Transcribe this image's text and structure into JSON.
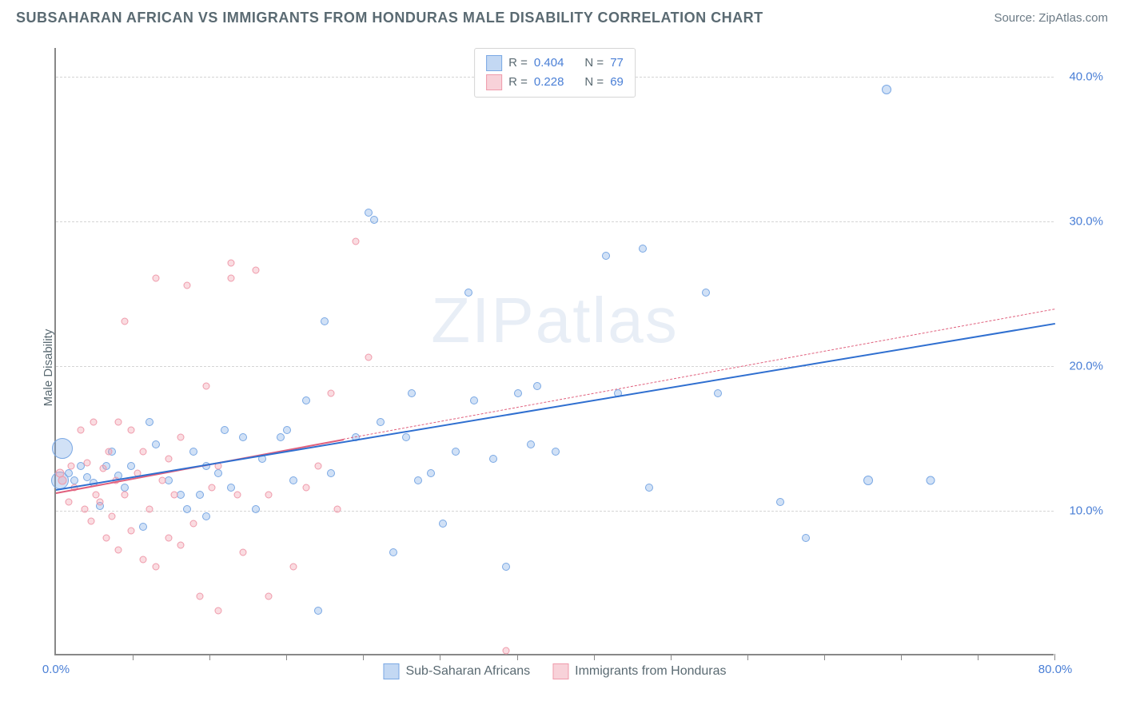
{
  "header": {
    "title": "SUBSAHARAN AFRICAN VS IMMIGRANTS FROM HONDURAS MALE DISABILITY CORRELATION CHART",
    "source": "Source: ZipAtlas.com"
  },
  "chart": {
    "type": "scatter",
    "ylabel": "Male Disability",
    "watermark": "ZIPatlas",
    "xlim": [
      0,
      80
    ],
    "ylim": [
      0,
      42
    ],
    "x_ticks": [
      0,
      80
    ],
    "x_minor_step": 6.15,
    "y_gridlines": [
      10,
      20,
      30,
      40
    ],
    "y_tick_labels": [
      "10.0%",
      "20.0%",
      "30.0%",
      "40.0%"
    ],
    "x_tick_labels": [
      "0.0%",
      "80.0%"
    ],
    "axis_tick_color": "#4a7fd6",
    "grid_color": "#d5d5d5",
    "background_color": "#ffffff",
    "series": [
      {
        "name": "Sub-Saharan Africans",
        "fill": "rgba(122,168,228,0.35)",
        "stroke": "#7aa8e4",
        "trend_color": "#2f6fd0",
        "trend_solid": true,
        "trend": {
          "x1": 0,
          "y1": 11.5,
          "x2": 80,
          "y2": 23
        },
        "r": 0.404,
        "n": 77,
        "points": [
          {
            "x": 0.3,
            "y": 12,
            "s": 22
          },
          {
            "x": 0.5,
            "y": 14.2,
            "s": 26
          },
          {
            "x": 1,
            "y": 12.5,
            "s": 10
          },
          {
            "x": 1.5,
            "y": 12,
            "s": 10
          },
          {
            "x": 2,
            "y": 13,
            "s": 10
          },
          {
            "x": 2.5,
            "y": 12.2,
            "s": 10
          },
          {
            "x": 3,
            "y": 11.8,
            "s": 10
          },
          {
            "x": 3.5,
            "y": 10.2,
            "s": 10
          },
          {
            "x": 4,
            "y": 13,
            "s": 10
          },
          {
            "x": 4.5,
            "y": 14,
            "s": 10
          },
          {
            "x": 5,
            "y": 12.3,
            "s": 10
          },
          {
            "x": 5.5,
            "y": 11.5,
            "s": 10
          },
          {
            "x": 6,
            "y": 13,
            "s": 10
          },
          {
            "x": 7,
            "y": 8.8,
            "s": 10
          },
          {
            "x": 7.5,
            "y": 16,
            "s": 10
          },
          {
            "x": 8,
            "y": 14.5,
            "s": 10
          },
          {
            "x": 9,
            "y": 12,
            "s": 10
          },
          {
            "x": 10,
            "y": 11,
            "s": 10
          },
          {
            "x": 10.5,
            "y": 10,
            "s": 10
          },
          {
            "x": 11,
            "y": 14,
            "s": 10
          },
          {
            "x": 11.5,
            "y": 11,
            "s": 10
          },
          {
            "x": 12,
            "y": 9.5,
            "s": 10
          },
          {
            "x": 12,
            "y": 13,
            "s": 10
          },
          {
            "x": 13,
            "y": 12.5,
            "s": 10
          },
          {
            "x": 13.5,
            "y": 15.5,
            "s": 10
          },
          {
            "x": 14,
            "y": 11.5,
            "s": 10
          },
          {
            "x": 15,
            "y": 15,
            "s": 10
          },
          {
            "x": 16,
            "y": 10,
            "s": 10
          },
          {
            "x": 16.5,
            "y": 13.5,
            "s": 10
          },
          {
            "x": 18,
            "y": 15,
            "s": 10
          },
          {
            "x": 18.5,
            "y": 15.5,
            "s": 10
          },
          {
            "x": 19,
            "y": 12,
            "s": 10
          },
          {
            "x": 20,
            "y": 17.5,
            "s": 10
          },
          {
            "x": 21,
            "y": 3,
            "s": 10
          },
          {
            "x": 21.5,
            "y": 23,
            "s": 10
          },
          {
            "x": 22,
            "y": 12.5,
            "s": 10
          },
          {
            "x": 24,
            "y": 15,
            "s": 10
          },
          {
            "x": 25,
            "y": 30.5,
            "s": 10
          },
          {
            "x": 25.5,
            "y": 30,
            "s": 10
          },
          {
            "x": 26,
            "y": 16,
            "s": 10
          },
          {
            "x": 27,
            "y": 7,
            "s": 10
          },
          {
            "x": 28,
            "y": 15,
            "s": 10
          },
          {
            "x": 28.5,
            "y": 18,
            "s": 10
          },
          {
            "x": 29,
            "y": 12,
            "s": 10
          },
          {
            "x": 30,
            "y": 12.5,
            "s": 10
          },
          {
            "x": 31,
            "y": 9,
            "s": 10
          },
          {
            "x": 32,
            "y": 14,
            "s": 10
          },
          {
            "x": 33,
            "y": 25,
            "s": 10
          },
          {
            "x": 33.5,
            "y": 17.5,
            "s": 10
          },
          {
            "x": 35,
            "y": 13.5,
            "s": 10
          },
          {
            "x": 36,
            "y": 6,
            "s": 10
          },
          {
            "x": 37,
            "y": 18,
            "s": 10
          },
          {
            "x": 38,
            "y": 14.5,
            "s": 10
          },
          {
            "x": 38.5,
            "y": 18.5,
            "s": 10
          },
          {
            "x": 40,
            "y": 14,
            "s": 10
          },
          {
            "x": 44,
            "y": 27.5,
            "s": 10
          },
          {
            "x": 45,
            "y": 18,
            "s": 10
          },
          {
            "x": 47,
            "y": 28,
            "s": 10
          },
          {
            "x": 47.5,
            "y": 11.5,
            "s": 10
          },
          {
            "x": 52,
            "y": 25,
            "s": 10
          },
          {
            "x": 53,
            "y": 18,
            "s": 10
          },
          {
            "x": 58,
            "y": 10.5,
            "s": 10
          },
          {
            "x": 60,
            "y": 8,
            "s": 10
          },
          {
            "x": 65,
            "y": 12,
            "s": 12
          },
          {
            "x": 66.5,
            "y": 39,
            "s": 12
          },
          {
            "x": 70,
            "y": 12,
            "s": 11
          }
        ]
      },
      {
        "name": "Immigrants from Honduras",
        "fill": "rgba(240,155,170,0.35)",
        "stroke": "#ef9bab",
        "trend_color": "#e0607d",
        "trend_solid_color": "#e0607d",
        "trend": {
          "x1": 0,
          "y1": 11.3,
          "x2": 80,
          "y2": 24
        },
        "dash": {
          "x1": 23,
          "y1": 15,
          "x2": 80,
          "y2": 24
        },
        "r": 0.228,
        "n": 69,
        "points": [
          {
            "x": 0.3,
            "y": 12.5,
            "s": 11
          },
          {
            "x": 0.5,
            "y": 12,
            "s": 11
          },
          {
            "x": 1,
            "y": 10.5,
            "s": 9
          },
          {
            "x": 1.2,
            "y": 13,
            "s": 9
          },
          {
            "x": 1.5,
            "y": 11.5,
            "s": 9
          },
          {
            "x": 2,
            "y": 15.5,
            "s": 9
          },
          {
            "x": 2.3,
            "y": 10,
            "s": 9
          },
          {
            "x": 2.5,
            "y": 13.2,
            "s": 9
          },
          {
            "x": 2.8,
            "y": 9.2,
            "s": 9
          },
          {
            "x": 3,
            "y": 16,
            "s": 9
          },
          {
            "x": 3.2,
            "y": 11,
            "s": 9
          },
          {
            "x": 3.5,
            "y": 10.5,
            "s": 9
          },
          {
            "x": 3.8,
            "y": 12.8,
            "s": 9
          },
          {
            "x": 4,
            "y": 8,
            "s": 9
          },
          {
            "x": 4.2,
            "y": 14,
            "s": 9
          },
          {
            "x": 4.5,
            "y": 9.5,
            "s": 9
          },
          {
            "x": 4.8,
            "y": 12,
            "s": 9
          },
          {
            "x": 5,
            "y": 16,
            "s": 9
          },
          {
            "x": 5,
            "y": 7.2,
            "s": 9
          },
          {
            "x": 5.5,
            "y": 11,
            "s": 9
          },
          {
            "x": 5.5,
            "y": 23,
            "s": 9
          },
          {
            "x": 6,
            "y": 15.5,
            "s": 9
          },
          {
            "x": 6,
            "y": 8.5,
            "s": 9
          },
          {
            "x": 6.5,
            "y": 12.5,
            "s": 9
          },
          {
            "x": 7,
            "y": 6.5,
            "s": 9
          },
          {
            "x": 7,
            "y": 14,
            "s": 9
          },
          {
            "x": 7.5,
            "y": 10,
            "s": 9
          },
          {
            "x": 8,
            "y": 26,
            "s": 9
          },
          {
            "x": 8,
            "y": 6,
            "s": 9
          },
          {
            "x": 8.5,
            "y": 12,
            "s": 9
          },
          {
            "x": 9,
            "y": 8,
            "s": 9
          },
          {
            "x": 9,
            "y": 13.5,
            "s": 9
          },
          {
            "x": 9.5,
            "y": 11,
            "s": 9
          },
          {
            "x": 10,
            "y": 7.5,
            "s": 9
          },
          {
            "x": 10,
            "y": 15,
            "s": 9
          },
          {
            "x": 10.5,
            "y": 25.5,
            "s": 9
          },
          {
            "x": 11,
            "y": 9,
            "s": 9
          },
          {
            "x": 11.5,
            "y": 4,
            "s": 9
          },
          {
            "x": 12,
            "y": 18.5,
            "s": 9
          },
          {
            "x": 12.5,
            "y": 11.5,
            "s": 9
          },
          {
            "x": 13,
            "y": 3,
            "s": 9
          },
          {
            "x": 13,
            "y": 13,
            "s": 9
          },
          {
            "x": 14,
            "y": 27,
            "s": 9
          },
          {
            "x": 14,
            "y": 26,
            "s": 9
          },
          {
            "x": 14.5,
            "y": 11,
            "s": 9
          },
          {
            "x": 15,
            "y": 7,
            "s": 9
          },
          {
            "x": 16,
            "y": 26.5,
            "s": 9
          },
          {
            "x": 17,
            "y": 4,
            "s": 9
          },
          {
            "x": 17,
            "y": 11,
            "s": 9
          },
          {
            "x": 19,
            "y": 6,
            "s": 9
          },
          {
            "x": 20,
            "y": 11.5,
            "s": 9
          },
          {
            "x": 21,
            "y": 13,
            "s": 9
          },
          {
            "x": 22,
            "y": 18,
            "s": 9
          },
          {
            "x": 22.5,
            "y": 10,
            "s": 9
          },
          {
            "x": 24,
            "y": 28.5,
            "s": 9
          },
          {
            "x": 25,
            "y": 20.5,
            "s": 9
          },
          {
            "x": 36,
            "y": 0.2,
            "s": 9
          }
        ]
      }
    ],
    "legend_box": {
      "rows": [
        {
          "swatch_fill": "rgba(122,168,228,0.45)",
          "swatch_stroke": "#7aa8e4",
          "r_label": "R =",
          "r": "0.404",
          "n_label": "N =",
          "n": "77"
        },
        {
          "swatch_fill": "rgba(240,155,170,0.45)",
          "swatch_stroke": "#ef9bab",
          "r_label": "R =",
          "r": " 0.228",
          "n_label": "N =",
          "n": "69"
        }
      ]
    },
    "bottom_legend": [
      {
        "swatch_fill": "rgba(122,168,228,0.45)",
        "swatch_stroke": "#7aa8e4",
        "label": "Sub-Saharan Africans"
      },
      {
        "swatch_fill": "rgba(240,155,170,0.45)",
        "swatch_stroke": "#ef9bab",
        "label": "Immigrants from Honduras"
      }
    ]
  }
}
